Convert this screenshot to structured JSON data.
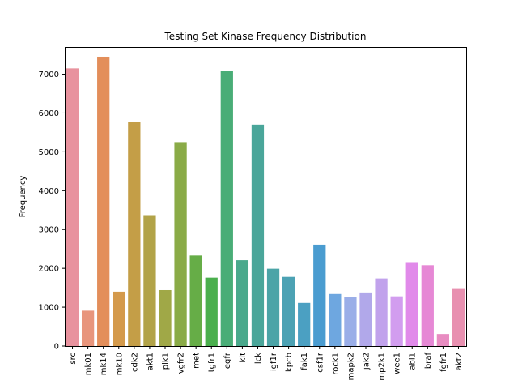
{
  "chart_data": {
    "type": "bar",
    "title": "Testing Set Kinase Frequency Distribution",
    "xlabel": "",
    "ylabel": "Frequency",
    "ylim": [
      0,
      7700
    ],
    "yticks": [
      0,
      1000,
      2000,
      3000,
      4000,
      5000,
      6000,
      7000
    ],
    "grid": false,
    "categories": [
      "src",
      "mk01",
      "mk14",
      "mk10",
      "cdk2",
      "akt1",
      "plk1",
      "vgfr2",
      "met",
      "tgfr1",
      "egfr",
      "kit",
      "lck",
      "igf1r",
      "kpcb",
      "fak1",
      "csf1r",
      "rock1",
      "mapk2",
      "jak2",
      "mp2k1",
      "wee1",
      "abl1",
      "braf",
      "fgfr1",
      "akt2"
    ],
    "values": [
      7150,
      910,
      7450,
      1400,
      5760,
      3370,
      1440,
      5250,
      2330,
      1760,
      7090,
      2210,
      5700,
      1990,
      1780,
      1110,
      2610,
      1340,
      1270,
      1380,
      1740,
      1280,
      2160,
      2080,
      310,
      1490
    ],
    "colors": [
      "#e8929e",
      "#e8957c",
      "#e38e5a",
      "#d49a4c",
      "#c49e47",
      "#b2a348",
      "#a0a847",
      "#8aab47",
      "#66ad47",
      "#4aaf4d",
      "#49ad77",
      "#4aa98c",
      "#4aa69a",
      "#4ba4a7",
      "#4ca2b4",
      "#4ba0c2",
      "#4a9cd0",
      "#6ea7e0",
      "#9aaee8",
      "#b1a8ea",
      "#c1a2ec",
      "#d29def",
      "#e18aea",
      "#e688d5",
      "#e88cc1",
      "#e890b0"
    ]
  }
}
